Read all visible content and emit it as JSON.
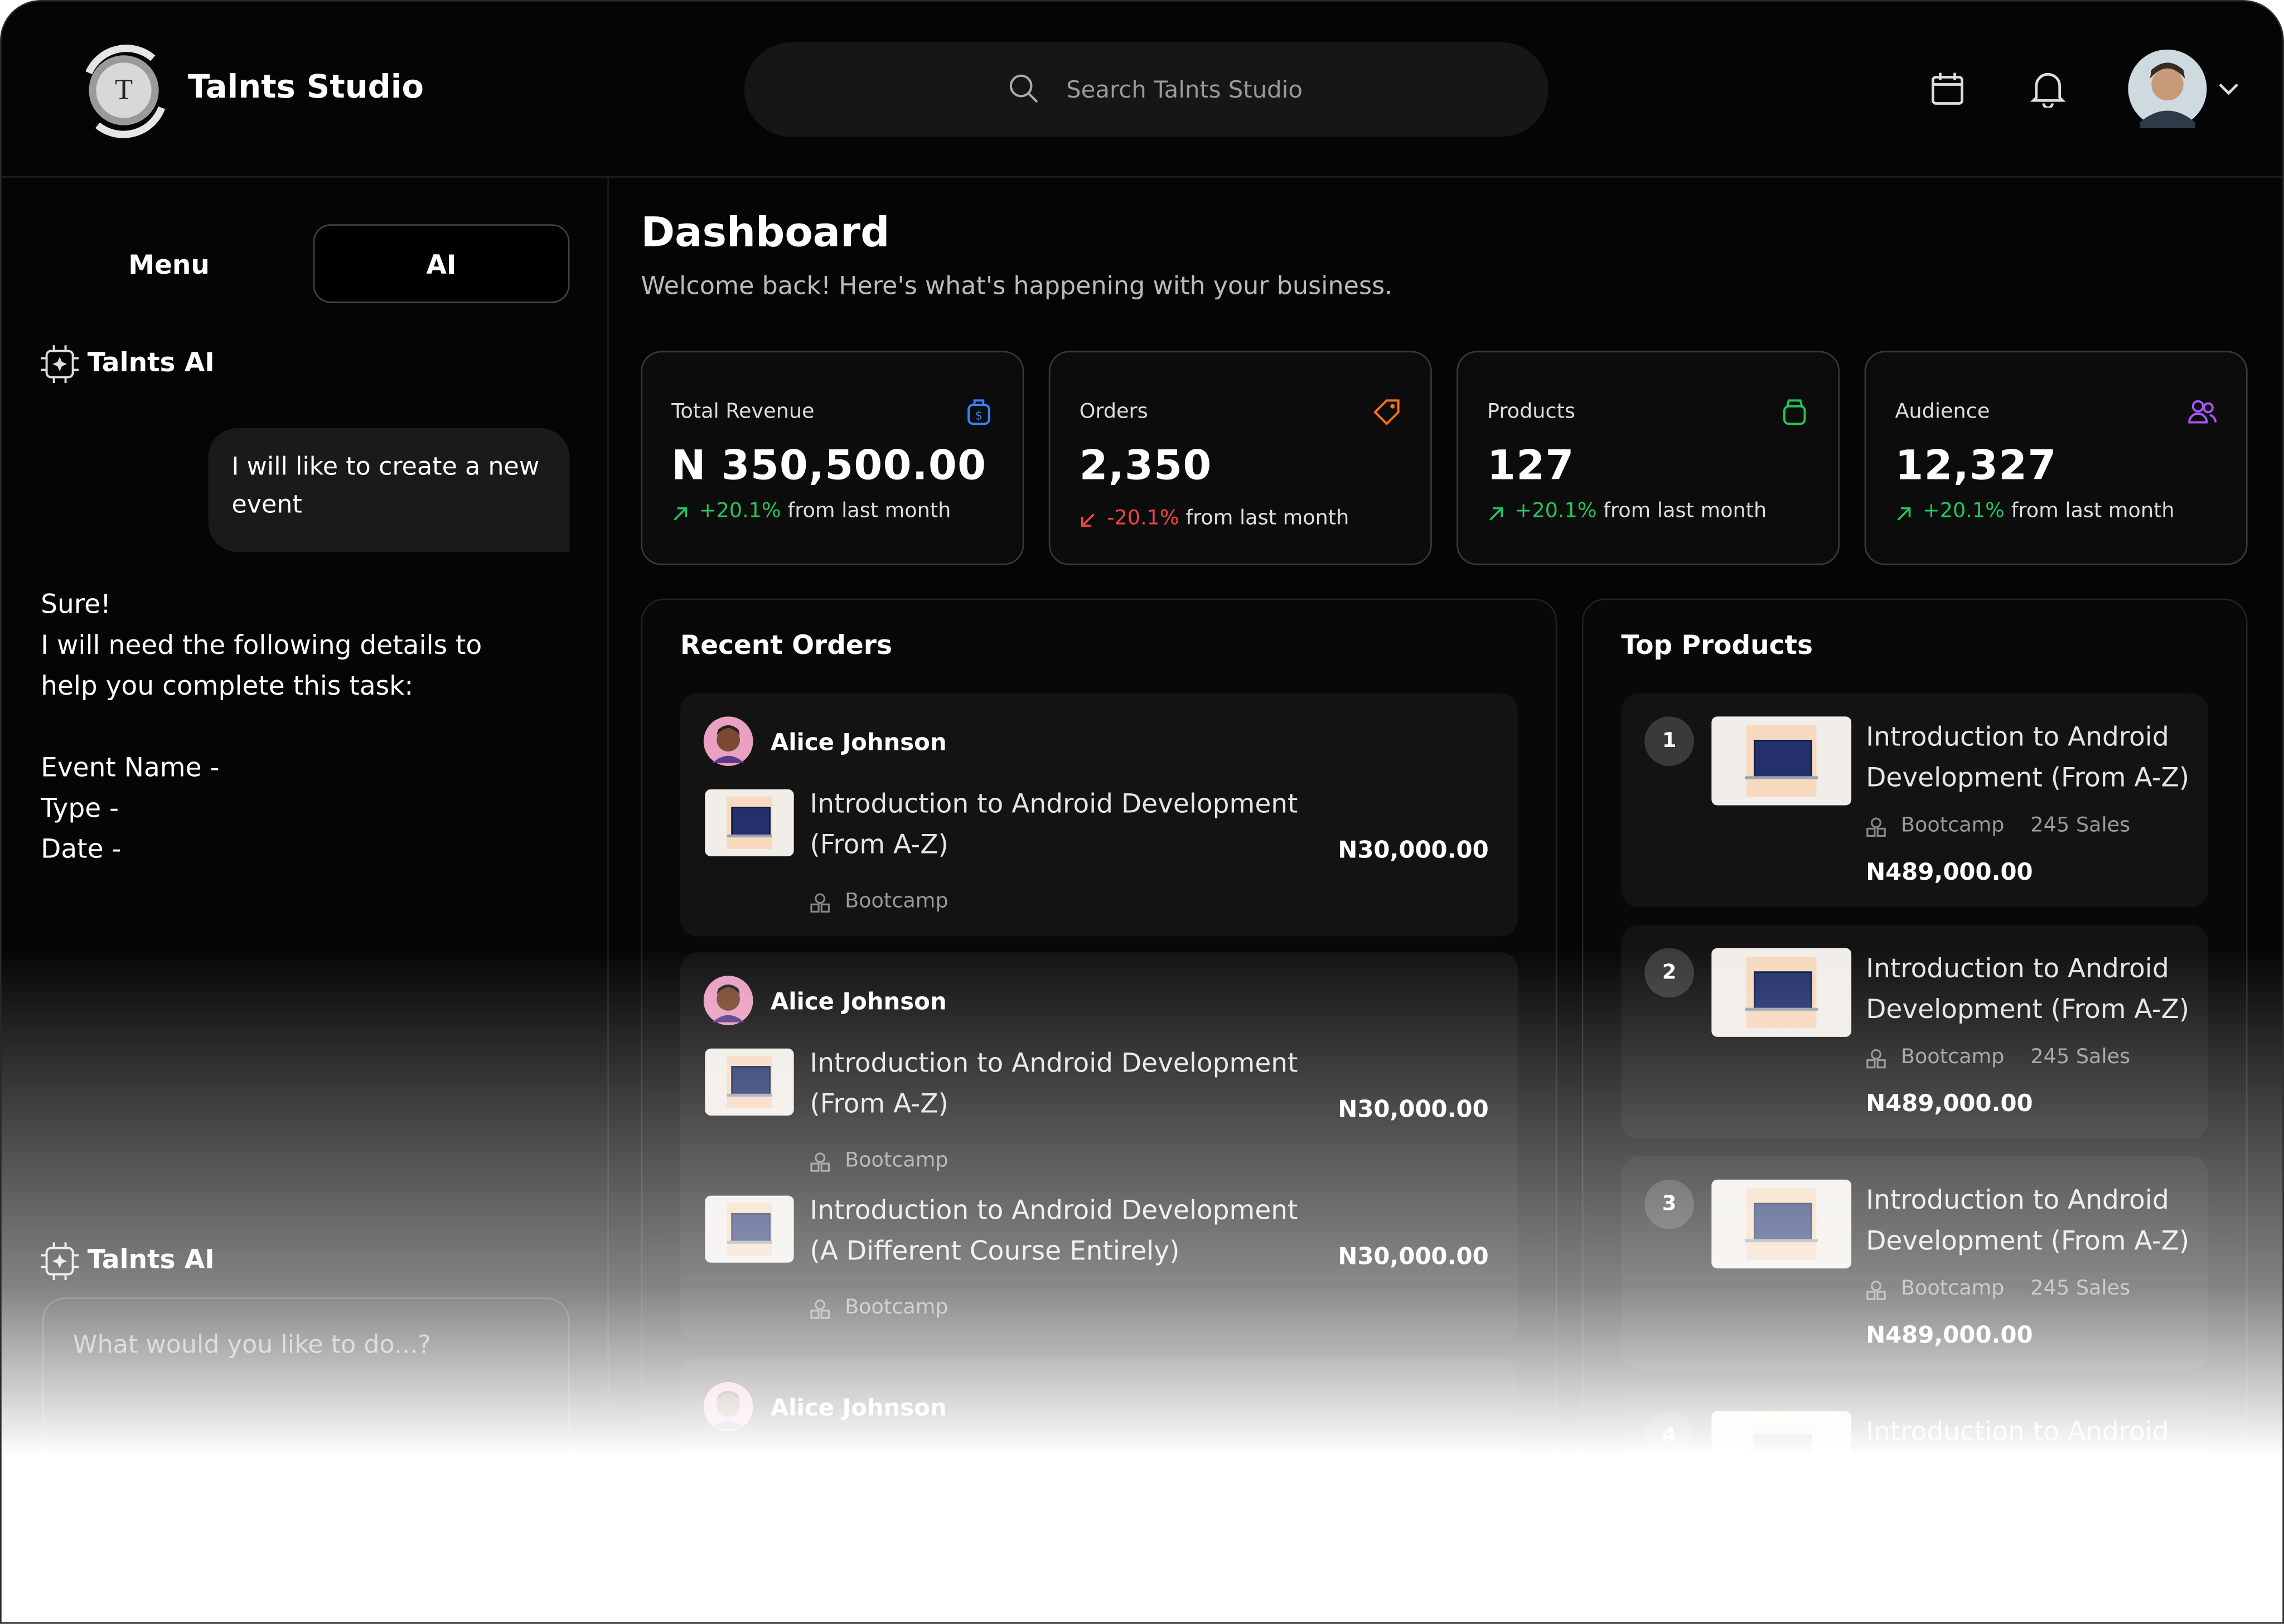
{
  "header": {
    "brand": "Talnts Studio",
    "search_placeholder": "Search Talnts Studio"
  },
  "sidebar": {
    "tabs": [
      "Menu",
      "AI"
    ],
    "assistant_name": "Talnts AI",
    "user_message": "I will like to create a new event",
    "reply_lines": [
      "Sure!",
      "I will need the following details to help you complete this task:"
    ],
    "fields": [
      "Event Name -",
      "Type -",
      "Date -"
    ],
    "input_label": "Talnts AI",
    "input_placeholder": "What would you like to do...?"
  },
  "dashboard": {
    "title": "Dashboard",
    "subtitle": "Welcome back! Here's what's happening with your business.",
    "stats": [
      {
        "label": "Total Revenue",
        "value": "N 350,500.00",
        "change": "+20.1%",
        "change_note": "from last month"
      },
      {
        "label": "Orders",
        "value": "2,350",
        "change": "-20.1%",
        "change_note": "from last month"
      },
      {
        "label": "Products",
        "value": "127",
        "change": "+20.1%",
        "change_note": "from last month"
      },
      {
        "label": "Audience",
        "value": "12,327",
        "change": "+20.1%",
        "change_note": "from last month"
      }
    ]
  },
  "recent_orders": {
    "title": "Recent Orders",
    "orders": [
      {
        "customer": "Alice Johnson",
        "items": [
          {
            "title": "Introduction to Android Development (From A-Z)",
            "price": "N30,000.00",
            "category": "Bootcamp"
          }
        ]
      },
      {
        "customer": "Alice Johnson",
        "items": [
          {
            "title": "Introduction to Android Development (From A-Z)",
            "price": "N30,000.00",
            "category": "Bootcamp"
          },
          {
            "title": "Introduction to Android Development (A Different Course Entirely)",
            "price": "N30,000.00",
            "category": "Bootcamp"
          }
        ]
      },
      {
        "customer": "Alice Johnson"
      }
    ]
  },
  "top_products": {
    "title": "Top Products",
    "products": [
      {
        "rank": "1",
        "title": "Introduction to Android Development (From A-Z)",
        "category": "Bootcamp",
        "sales": "245 Sales",
        "revenue": "N489,000.00"
      },
      {
        "rank": "2",
        "title": "Introduction to Android Development (From A-Z)",
        "category": "Bootcamp",
        "sales": "245 Sales",
        "revenue": "N489,000.00"
      },
      {
        "rank": "3",
        "title": "Introduction to Android Development (From A-Z)",
        "category": "Bootcamp",
        "sales": "245 Sales",
        "revenue": "N489,000.00"
      },
      {
        "rank": "4",
        "title": "Introduction to Android"
      }
    ]
  }
}
